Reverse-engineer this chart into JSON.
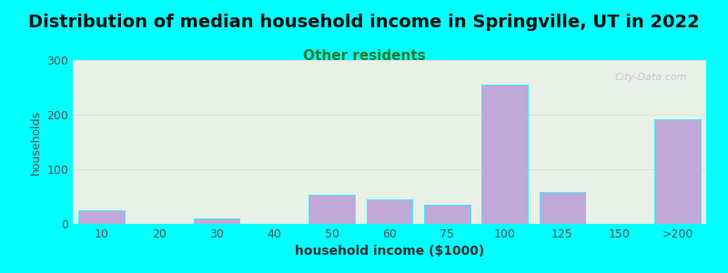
{
  "title": "Distribution of median household income in Springville, UT in 2022",
  "subtitle": "Other residents",
  "xlabel": "household income ($1000)",
  "ylabel": "households",
  "background_outer": "#00FFFF",
  "background_inner_top": "#e8f0e8",
  "background_inner_bottom": "#f5f5f5",
  "bar_color": "#c0a8d8",
  "bar_edge_color": "#ffffff",
  "categories": [
    "10",
    "20",
    "30",
    "40",
    "50",
    "60",
    "75",
    "100",
    "125",
    "150",
    ">200"
  ],
  "values": [
    25,
    0,
    10,
    0,
    53,
    45,
    35,
    255,
    58,
    0,
    192
  ],
  "ylim": [
    0,
    300
  ],
  "yticks": [
    0,
    100,
    200,
    300
  ],
  "grid_color": "#d8e8d0",
  "title_fontsize": 14,
  "subtitle_fontsize": 11,
  "subtitle_color": "#2a7a2a",
  "axis_label_fontsize": 10,
  "tick_fontsize": 9,
  "ylabel_fontsize": 9,
  "watermark": "City-Data.com"
}
